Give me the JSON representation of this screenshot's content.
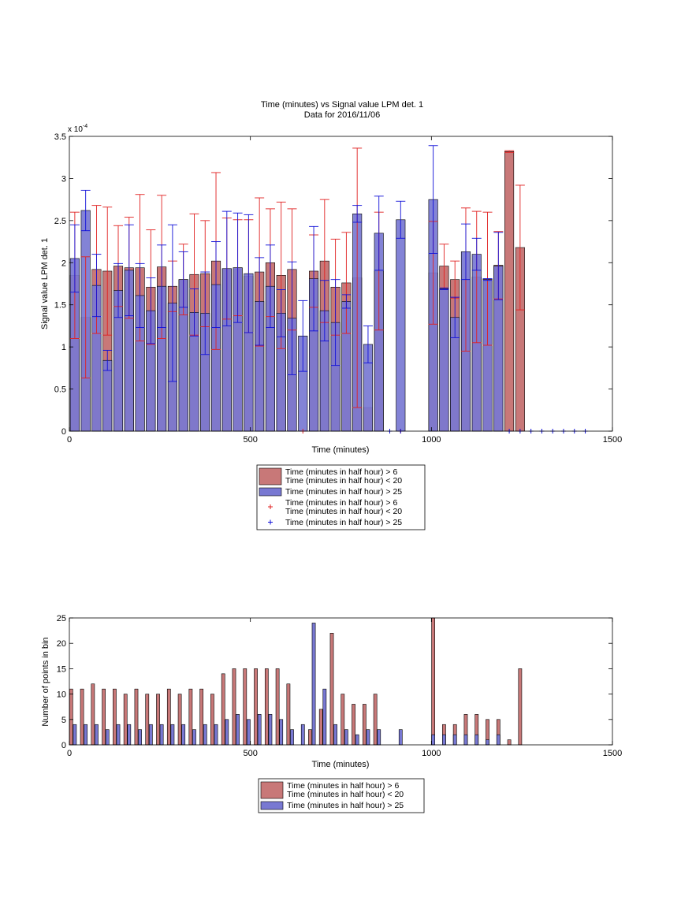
{
  "figure": {
    "colors": {
      "red_bar": "#c87878",
      "blue_bar": "#7878d2",
      "red_err": "#e02020",
      "blue_err": "#1010d8",
      "axis": "#000000"
    }
  },
  "chart_data": [
    {
      "type": "bar",
      "title": "Time (minutes) vs Signal value LPM det. 1",
      "subtitle": "Data for 2016/11/06",
      "xlabel": "Time (minutes)",
      "ylabel": "Signal value LPM det. 1",
      "exponent_label": "x 10",
      "exponent_power": "-4",
      "xlim": [
        0,
        1500
      ],
      "ylim": [
        0,
        3.5
      ],
      "y_scale_factor": 0.0001,
      "xticks": [
        0,
        500,
        1000,
        1500
      ],
      "xtick_labels": [
        "0",
        "500",
        "1000",
        "1500"
      ],
      "yticks": [
        0,
        0.5,
        1,
        1.5,
        2,
        2.5,
        3,
        3.5
      ],
      "ytick_labels": [
        "0",
        "0.5",
        "1",
        "1.5",
        "2",
        "2.5",
        "3",
        "3.5"
      ],
      "grid": false,
      "legend_position": "below",
      "legend": [
        "Time (minutes in half hour) > 6\nTime (minutes in half hour) < 20",
        "Time (minutes in half hour) > 25",
        "Time (minutes in half hour) > 6\nTime (minutes in half hour) < 20",
        "Time (minutes in half hour) > 25"
      ],
      "bar_width": 25,
      "series": [
        {
          "color": "#c87878",
          "err_color": "#e02020",
          "x": [
            15,
            45,
            75,
            105,
            135,
            165,
            195,
            225,
            255,
            285,
            315,
            345,
            375,
            405,
            435,
            465,
            495,
            525,
            555,
            585,
            615,
            645,
            675,
            705,
            735,
            765,
            795,
            825,
            855,
            915,
            1005,
            1035,
            1065,
            1095,
            1125,
            1155,
            1185,
            1215,
            1245
          ],
          "values": [
            1.85,
            1.35,
            1.92,
            1.9,
            1.96,
            1.94,
            1.94,
            1.71,
            1.95,
            1.72,
            1.8,
            1.86,
            1.87,
            2.02,
            1.93,
            1.94,
            1.84,
            1.89,
            2.0,
            1.85,
            1.92,
            0.0,
            1.9,
            2.02,
            1.71,
            1.76,
            1.82,
            0.28,
            1.9,
            0.0,
            1.88,
            1.96,
            1.8,
            1.8,
            1.83,
            1.81,
            1.97,
            3.32,
            2.18
          ],
          "err": [
            0.75,
            0.72,
            0.76,
            0.76,
            0.48,
            0.6,
            0.87,
            0.68,
            0.85,
            0.3,
            0.42,
            0.72,
            0.63,
            1.05,
            0.6,
            0.57,
            0.67,
            0.88,
            0.64,
            0.87,
            0.72,
            0.0,
            0.43,
            0.73,
            0.57,
            0.6,
            1.54,
            0.0,
            0.7,
            0.0,
            0.61,
            0.26,
            0.22,
            0.85,
            0.78,
            0.79,
            0.4,
            0.01,
            0.74
          ]
        },
        {
          "color": "#7878d2",
          "err_color": "#1010d8",
          "x": [
            15,
            45,
            75,
            105,
            135,
            165,
            195,
            225,
            255,
            285,
            315,
            345,
            375,
            405,
            435,
            465,
            495,
            525,
            555,
            585,
            615,
            645,
            675,
            705,
            735,
            765,
            795,
            825,
            855,
            915,
            1005,
            1035,
            1065,
            1095,
            1125,
            1155,
            1185
          ],
          "values": [
            2.05,
            2.62,
            1.73,
            0.84,
            1.67,
            1.91,
            1.61,
            1.43,
            1.72,
            1.52,
            1.8,
            1.41,
            1.4,
            1.74,
            1.93,
            1.94,
            1.87,
            1.54,
            1.72,
            1.4,
            1.34,
            1.13,
            1.81,
            1.43,
            1.29,
            1.54,
            2.58,
            1.03,
            2.35,
            2.51,
            2.75,
            1.69,
            1.35,
            2.13,
            2.1,
            1.8,
            1.96
          ],
          "err": [
            0.4,
            0.24,
            0.37,
            0.12,
            0.32,
            0.54,
            0.38,
            0.39,
            0.49,
            0.93,
            0.33,
            0.28,
            0.49,
            0.51,
            0.68,
            0.65,
            0.7,
            0.52,
            0.49,
            0.28,
            0.67,
            0.42,
            0.62,
            0.36,
            0.51,
            0.08,
            0.1,
            0.22,
            0.44,
            0.22,
            0.64,
            0.01,
            0.24,
            0.33,
            0.19,
            0.01,
            0.4
          ]
        }
      ],
      "zero_markers": {
        "red_x": [
          645,
          915
        ],
        "blue_x": [
          885,
          915,
          1215,
          1245,
          1275,
          1305,
          1335,
          1365,
          1395,
          1425
        ]
      }
    },
    {
      "type": "bar",
      "title": "",
      "xlabel": "Time (minutes)",
      "ylabel": "Number of points in bin",
      "xlim": [
        0,
        1500
      ],
      "ylim": [
        0,
        25
      ],
      "xticks": [
        0,
        500,
        1000,
        1500
      ],
      "xtick_labels": [
        "0",
        "500",
        "1000",
        "1500"
      ],
      "yticks": [
        0,
        5,
        10,
        15,
        20,
        25
      ],
      "ytick_labels": [
        "0",
        "5",
        "10",
        "15",
        "20",
        "25"
      ],
      "grid": false,
      "legend_position": "below",
      "legend": [
        "Time (minutes in half hour) > 6\nTime (minutes in half hour) < 20",
        "Time (minutes in half hour) > 25"
      ],
      "bar_width": 9,
      "series": [
        {
          "color": "#c87878",
          "x": [
            5,
            35,
            65,
            95,
            125,
            155,
            185,
            215,
            245,
            275,
            305,
            335,
            365,
            395,
            425,
            455,
            485,
            515,
            545,
            575,
            605,
            665,
            695,
            725,
            755,
            785,
            815,
            845,
            1005,
            1035,
            1065,
            1095,
            1125,
            1155,
            1185,
            1215,
            1245
          ],
          "values": [
            11,
            11,
            12,
            11,
            11,
            10,
            11,
            10,
            10,
            11,
            10,
            11,
            11,
            10,
            14,
            15,
            15,
            15,
            15,
            15,
            12,
            3,
            7,
            22,
            10,
            8,
            8,
            10,
            25,
            4,
            4,
            6,
            6,
            5,
            5,
            1,
            15
          ]
        },
        {
          "color": "#7878d2",
          "x": [
            15,
            45,
            75,
            105,
            135,
            165,
            195,
            225,
            255,
            285,
            315,
            345,
            375,
            405,
            435,
            465,
            495,
            525,
            555,
            585,
            615,
            645,
            675,
            705,
            735,
            765,
            795,
            825,
            855,
            915,
            1005,
            1035,
            1065,
            1095,
            1125,
            1155,
            1185
          ],
          "values": [
            4,
            4,
            4,
            3,
            4,
            4,
            3,
            4,
            4,
            4,
            4,
            3,
            4,
            4,
            5,
            6,
            5,
            6,
            6,
            5,
            3,
            4,
            24,
            11,
            4,
            3,
            2,
            3,
            3,
            3,
            2,
            2,
            2,
            2,
            2,
            1,
            2
          ]
        }
      ]
    }
  ]
}
